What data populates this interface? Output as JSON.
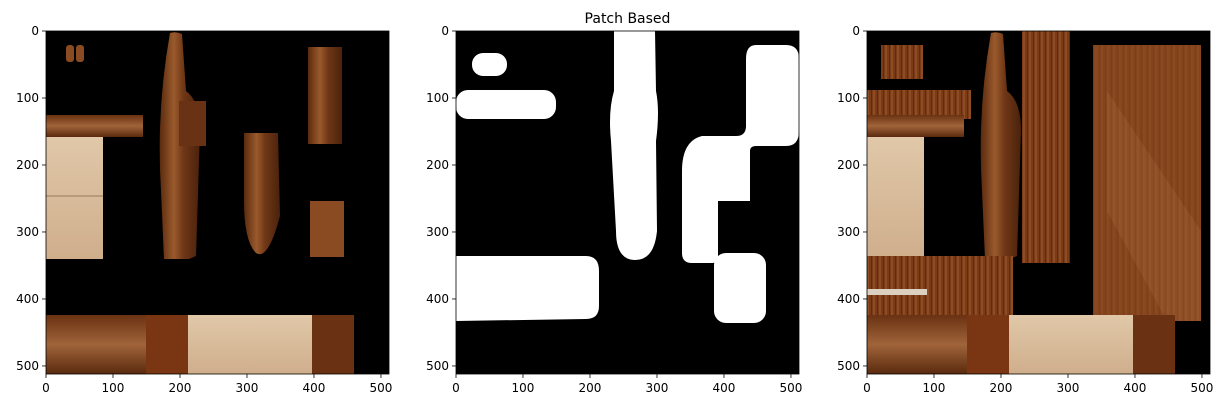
{
  "chart_data": [
    {
      "type": "image",
      "title": "",
      "xlabel": "",
      "ylabel": "",
      "xlim": [
        0,
        512
      ],
      "ylim": [
        512,
        0
      ],
      "xticks": [
        0,
        100,
        200,
        300,
        400,
        500
      ],
      "yticks": [
        0,
        100,
        200,
        300,
        400,
        500
      ],
      "grid": false,
      "content": "masked texture input"
    },
    {
      "type": "image",
      "title": "Patch Based",
      "xlabel": "",
      "ylabel": "",
      "xlim": [
        0,
        512
      ],
      "ylim": [
        512,
        0
      ],
      "xticks": [
        0,
        100,
        200,
        300,
        400,
        500
      ],
      "yticks": [
        0,
        100,
        200,
        300,
        400,
        500
      ],
      "grid": false,
      "content": "binary mask"
    },
    {
      "type": "image",
      "title": "",
      "xlabel": "",
      "ylabel": "",
      "xlim": [
        0,
        512
      ],
      "ylim": [
        512,
        0
      ],
      "xticks": [
        0,
        100,
        200,
        300,
        400,
        500
      ],
      "yticks": [
        0,
        100,
        200,
        300,
        400,
        500
      ],
      "grid": false,
      "content": "patch-based filled texture"
    }
  ],
  "colors": {
    "background": "#000000",
    "mask": "#ffffff",
    "wood_dark": "#5a2a0e",
    "wood_mid": "#8a4a22",
    "wood_light": "#b06a3a",
    "fabric": "#d8c0a0"
  }
}
